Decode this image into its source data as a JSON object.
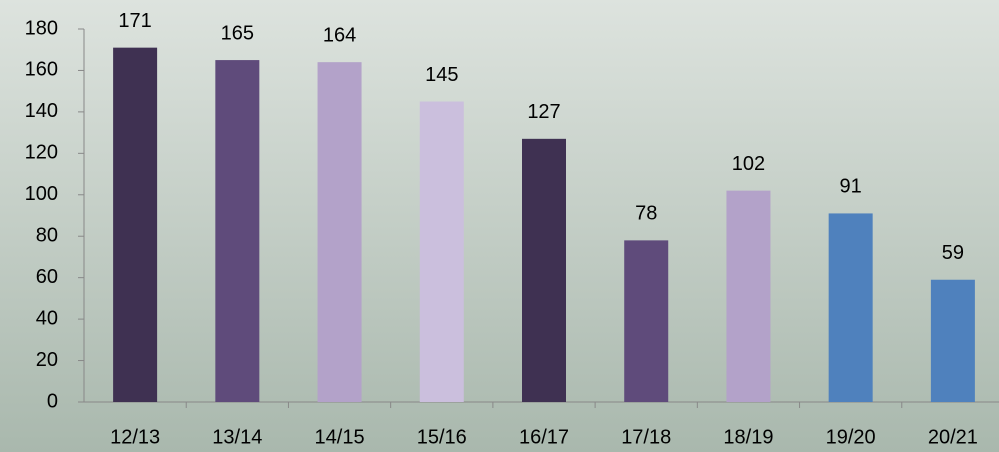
{
  "chart_data": {
    "type": "bar",
    "categories": [
      "12/13",
      "13/14",
      "14/15",
      "15/16",
      "16/17",
      "17/18",
      "18/19",
      "19/20",
      "20/21"
    ],
    "values": [
      171,
      165,
      164,
      145,
      127,
      78,
      102,
      91,
      59
    ],
    "colors": [
      "#3f3152",
      "#5f4b7b",
      "#b3a2c9",
      "#cbbfdd",
      "#3f3152",
      "#5f4b7b",
      "#b3a2c9",
      "#4f81bd",
      "#4f81bd"
    ],
    "ylim": [
      0,
      180
    ],
    "yticks": [
      0,
      20,
      40,
      60,
      80,
      100,
      120,
      140,
      160,
      180
    ],
    "grid": false
  }
}
